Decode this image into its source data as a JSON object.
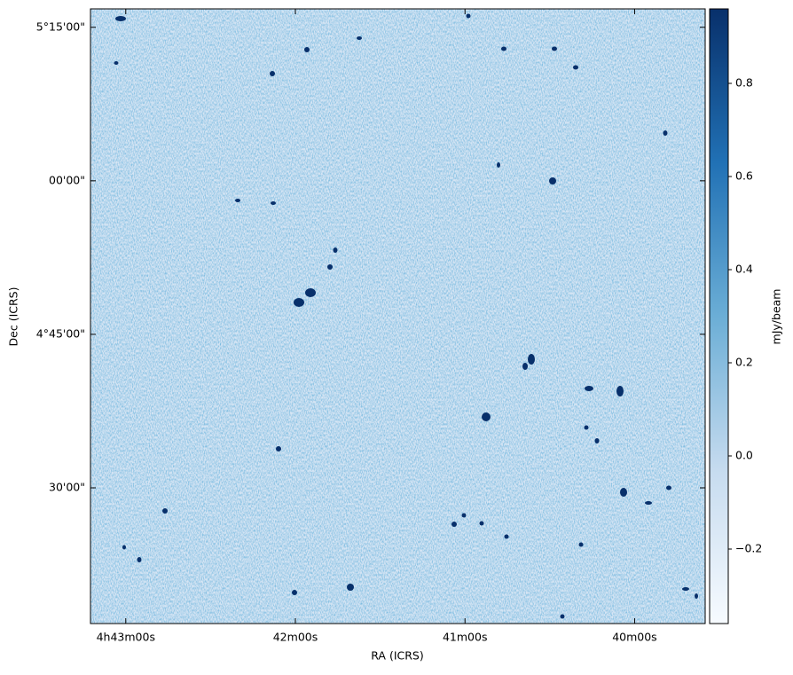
{
  "chart_data": {
    "type": "image",
    "xlabel": "RA (ICRS)",
    "ylabel": "Dec (ICRS)",
    "xlim": [
      70.802,
      69.896
    ],
    "xticks": [
      {
        "value": 70.75,
        "label": "4h43m00s"
      },
      {
        "value": 70.5,
        "label": "42m00s"
      },
      {
        "value": 70.25,
        "label": "41m00s"
      },
      {
        "value": 70.0,
        "label": "40m00s"
      }
    ],
    "ylim": [
      4.279,
      5.28
    ],
    "yticks": [
      {
        "value": 5.25,
        "label": "5°15'00\""
      },
      {
        "value": 5.0,
        "label": "00'00\""
      },
      {
        "value": 4.75,
        "label": "4°45'00\""
      },
      {
        "value": 4.5,
        "label": "30'00\""
      }
    ],
    "colorbar": {
      "label": "mJy/beam",
      "lim": [
        -0.36,
        0.96
      ],
      "ticks": [
        {
          "value": -0.2,
          "label": "−0.2"
        },
        {
          "value": 0,
          "label": "0.0"
        },
        0.2,
        0.4,
        0.6,
        0.8
      ],
      "colors": [
        "#f7fbff",
        "#c6dbef",
        "#6baed6",
        "#2171b5",
        "#08306b"
      ]
    }
  }
}
